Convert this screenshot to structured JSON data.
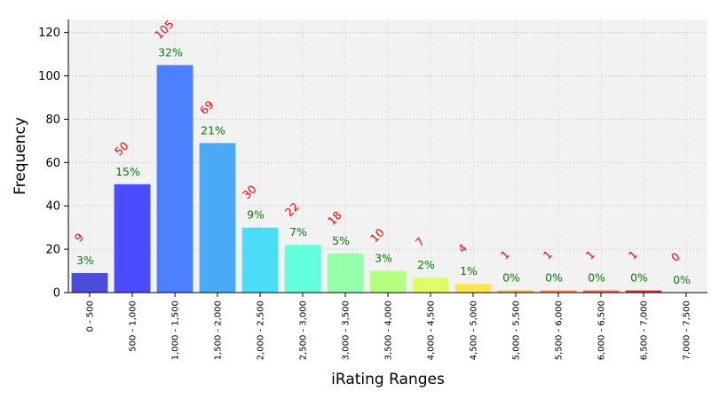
{
  "chart_data": {
    "type": "bar",
    "xlabel": "iRating Ranges",
    "ylabel": "Frequency",
    "ylim": [
      0,
      126
    ],
    "yticks": [
      0,
      20,
      40,
      60,
      80,
      100,
      120
    ],
    "grid": true,
    "categories": [
      "0 - 500",
      "500 - 1,000",
      "1,000 - 1,500",
      "1,500 - 2,000",
      "2,000 - 2,500",
      "2,500 - 3,000",
      "3,000 - 3,500",
      "3,500 - 4,000",
      "4,000 - 4,500",
      "4,500 - 5,000",
      "5,000 - 5,500",
      "5,500 - 6,000",
      "6,000 - 6,500",
      "6,500 - 7,000",
      "7,000 - 7,500"
    ],
    "values": [
      9,
      50,
      105,
      69,
      30,
      22,
      18,
      10,
      7,
      4,
      1,
      1,
      1,
      1,
      0
    ],
    "count_labels": [
      "9",
      "50",
      "105",
      "69",
      "30",
      "22",
      "18",
      "10",
      "7",
      "4",
      "1",
      "1",
      "1",
      "1",
      "0"
    ],
    "percent_labels": [
      "3%",
      "15%",
      "32%",
      "21%",
      "9%",
      "7%",
      "5%",
      "3%",
      "2%",
      "1%",
      "0%",
      "0%",
      "0%",
      "0%",
      "0%"
    ],
    "colors": [
      "#4b4bdc",
      "#4b4bff",
      "#4b80ff",
      "#4baaf8",
      "#4bdcf8",
      "#64ffdc",
      "#96ffaa",
      "#b4ff82",
      "#dcff64",
      "#ffe64b",
      "#ffb44b",
      "#ff8c4b",
      "#ff644b",
      "#dc3232",
      "#b41e1e"
    ],
    "count_label_color": "#ff0000",
    "percent_label_color": "#008000",
    "plot_background": "#f2f2f2"
  }
}
